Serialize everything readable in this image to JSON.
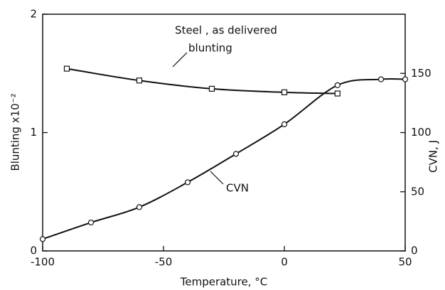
{
  "chart_data": {
    "type": "line",
    "annotation": "Steel , as delivered",
    "xlabel": "Temperature, °C",
    "ylabel": "Blunting  x10⁻²",
    "y2label": "CVN, J",
    "xlim": [
      -100,
      50
    ],
    "xticks": [
      -100,
      -50,
      0,
      50
    ],
    "ylim": [
      0,
      2
    ],
    "yticks": [
      0,
      1,
      2
    ],
    "y2lim": [
      0,
      200
    ],
    "y2ticks": [
      0,
      50,
      100,
      150
    ],
    "series": [
      {
        "name": "blunting",
        "color": "#111111",
        "marker": "square",
        "x": [
          -90,
          -60,
          -30,
          0,
          22
        ],
        "values": [
          1.54,
          1.44,
          1.37,
          1.34,
          1.33
        ]
      },
      {
        "name": "CVN",
        "color": "#111111",
        "marker": "circle",
        "axis": "y2",
        "x": [
          -100,
          -80,
          -60,
          -40,
          -20,
          0,
          22,
          40,
          50
        ],
        "values": [
          10,
          24,
          37,
          58,
          82,
          107,
          140,
          145,
          145
        ]
      }
    ]
  }
}
